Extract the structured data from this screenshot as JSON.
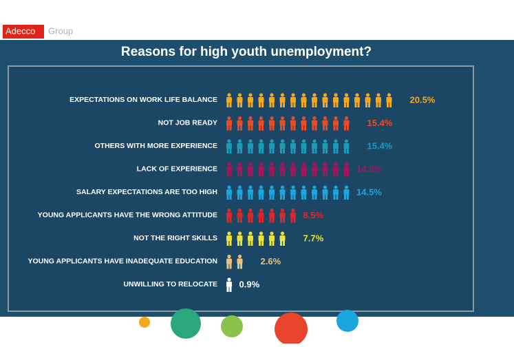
{
  "brand": "Adecco",
  "brand_suffix": "Group",
  "chart_data": {
    "type": "pictogram",
    "title": "Reasons for high youth unemployment?",
    "categories": [
      "EXPECTATIONS ON WORK LIFE BALANCE",
      "NOT JOB READY",
      "OTHERS WITH MORE EXPERIENCE",
      "LACK OF EXPERIENCE",
      "SALARY EXPECTATIONS ARE TOO HIGH",
      "YOUNG APPLICANTS HAVE THE WRONG ATTITUDE",
      "NOT THE RIGHT SKILLS",
      "YOUNG APPLICANTS HAVE INADEQUATE EDUCATION",
      "UNWILLING  TO RELOCATE"
    ],
    "values": [
      20.5,
      15.4,
      15.4,
      14.5,
      14.5,
      8.5,
      7.7,
      2.6,
      0.9
    ],
    "value_labels": [
      "20.5%",
      "15.4%",
      "15.4%",
      "14.5%",
      "14.5%",
      "8.5%",
      "7.7%",
      "2.6%",
      "0.9%"
    ],
    "colors": [
      "#f5a81e",
      "#ec4a26",
      "#1b9bb8",
      "#a3175a",
      "#1ba5de",
      "#e1262b",
      "#e8e43a",
      "#e9c283",
      "#ffffff"
    ]
  }
}
